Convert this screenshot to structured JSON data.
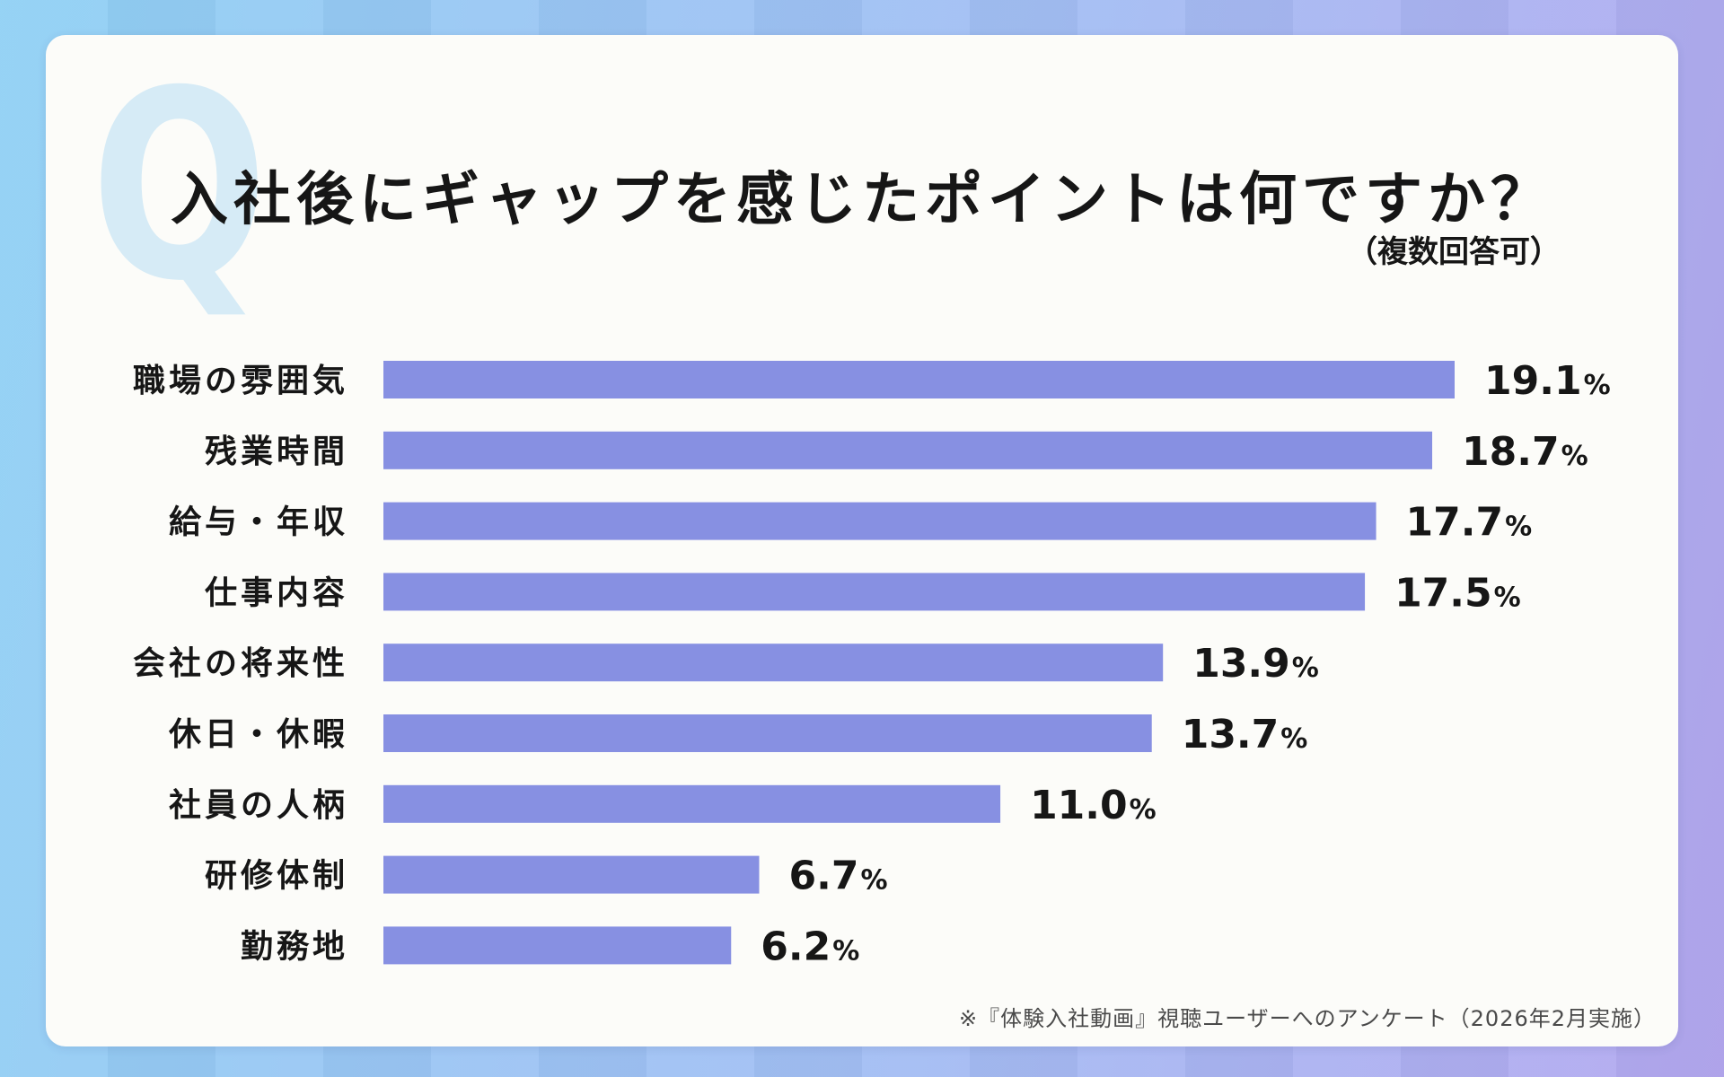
{
  "title": "入社後にギャップを感じたポイントは何ですか？",
  "subtitle": "（複数回答可）",
  "q_mark": "Q",
  "footnote": "※『体験入社動画』視聴ユーザーへのアンケート（2026年2月実施）",
  "colors": {
    "bar": "#8790e2",
    "text": "#161616",
    "q_mark": "#d6ebf6"
  },
  "chart_data": {
    "type": "bar",
    "orientation": "horizontal",
    "title": "入社後にギャップを感じたポイントは何ですか？",
    "subtitle": "（複数回答可）",
    "unit": "%",
    "categories": [
      "職場の雰囲気",
      "残業時間",
      "給与・年収",
      "仕事内容",
      "会社の将来性",
      "休日・休暇",
      "社員の人柄",
      "研修体制",
      "勤務地"
    ],
    "values": [
      19.1,
      18.7,
      17.7,
      17.5,
      13.9,
      13.7,
      11.0,
      6.7,
      6.2
    ],
    "value_labels": [
      "19.1",
      "18.7",
      "17.7",
      "17.5",
      "13.9",
      "13.7",
      "11.0",
      "6.7",
      "6.2"
    ],
    "xlim": [
      0,
      19.1
    ],
    "grid": false,
    "legend": "none"
  }
}
